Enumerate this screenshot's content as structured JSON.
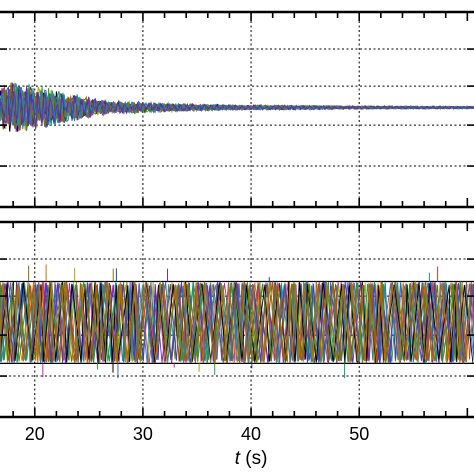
{
  "chart_data": [
    {
      "type": "line",
      "panel": "top",
      "xlabel": {
        "symbol": "t",
        "unit": " (s)"
      },
      "x_ticks": [
        20,
        30,
        40,
        50
      ],
      "xlim": [
        16.6,
        60.8
      ],
      "grid": true,
      "legend": "none",
      "series_count": 12,
      "envelope": {
        "x": [
          16.6,
          18,
          19.5,
          21,
          23,
          25,
          27,
          30,
          35,
          40,
          50,
          60.8
        ],
        "amplitude": [
          0.12,
          0.16,
          0.14,
          0.12,
          0.09,
          0.06,
          0.04,
          0.03,
          0.02,
          0.015,
          0.01,
          0.008
        ]
      },
      "colors": [
        "#000000",
        "#1f3fbf",
        "#0a9a6a",
        "#b8a000",
        "#6a2bb0",
        "#2aa02a",
        "#c22b8a",
        "#3070d0",
        "#404040",
        "#8a6a00",
        "#1a8fa0",
        "#5a30c0"
      ]
    },
    {
      "type": "line",
      "panel": "bottom",
      "xlabel": {
        "symbol": "t",
        "unit": " (s)"
      },
      "x_ticks": [
        20,
        30,
        40,
        50
      ],
      "xlim": [
        16.6,
        60.8
      ],
      "grid": true,
      "legend": "none",
      "series_count": 14,
      "band": {
        "x_start": 16.6,
        "x_end": 60.8,
        "lower": -1,
        "upper": 1
      },
      "colors": [
        "#1f3fbf",
        "#2aa02a",
        "#c22b8a",
        "#b8a000",
        "#6a2bb0",
        "#0a9a6a",
        "#d03a2a",
        "#3070d0",
        "#8a6a00",
        "#1a8fa0",
        "#5a30c0",
        "#000000",
        "#7a7a00",
        "#c07000"
      ]
    }
  ]
}
